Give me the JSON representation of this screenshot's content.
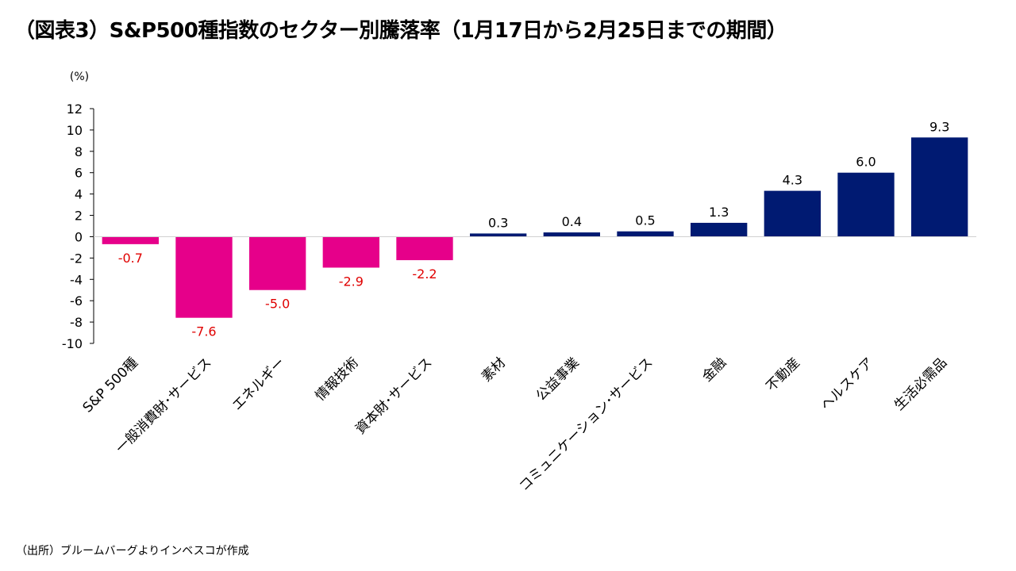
{
  "page": {
    "title": "（図表3）S&P500種指数のセクター別騰落率（1月17日から2月25日までの期間）",
    "source": "（出所）ブルームバーグよりインベスコが作成"
  },
  "colors": {
    "negative": "#E6008A",
    "positive": "#001A72",
    "negative_label": "#E00000",
    "axis": "#000000"
  },
  "chart_data": {
    "type": "bar",
    "title": "",
    "ylabel": "(%)",
    "xlabel": "",
    "ylim": [
      -10,
      12
    ],
    "yticks": [
      12,
      10,
      8,
      6,
      4,
      2,
      0,
      -2,
      -4,
      -6,
      -8,
      -10
    ],
    "yticks_labels": [
      "12",
      "10",
      "8",
      "6",
      "4",
      "2",
      "0",
      "-2",
      "-4",
      "-6",
      "-8",
      "-10"
    ],
    "categories": [
      "S&P 500種",
      "一般消費財･サービス",
      "エネルギー",
      "情報技術",
      "資本財･サービス",
      "素材",
      "公益事業",
      "コミュニケーション･サービス",
      "金融",
      "不動産",
      "ヘルスケア",
      "生活必需品"
    ],
    "values": [
      -0.7,
      -7.6,
      -5.0,
      -2.9,
      -2.2,
      0.3,
      0.4,
      0.5,
      1.3,
      4.3,
      6.0,
      9.3
    ],
    "value_labels": [
      "-0.7",
      "-7.6",
      "-5.0",
      "-2.9",
      "-2.2",
      "0.3",
      "0.4",
      "0.5",
      "1.3",
      "4.3",
      "6.0",
      "9.3"
    ],
    "grid": false,
    "legend": "none"
  }
}
